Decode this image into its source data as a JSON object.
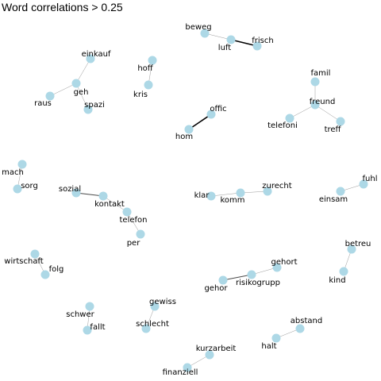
{
  "title": "Word correlations > 0.25",
  "colors": {
    "node": "#add8e6",
    "edge": "#000000",
    "background": "#ffffff"
  },
  "graph": {
    "nodes": [
      {
        "id": "beweg",
        "label": "beweg"
      },
      {
        "id": "luft",
        "label": "luft"
      },
      {
        "id": "frisch",
        "label": "frisch"
      },
      {
        "id": "einkauf",
        "label": "einkauf"
      },
      {
        "id": "geh",
        "label": "geh"
      },
      {
        "id": "raus",
        "label": "raus"
      },
      {
        "id": "spazi",
        "label": "spazi"
      },
      {
        "id": "hoff",
        "label": "hoff"
      },
      {
        "id": "kris",
        "label": "kris"
      },
      {
        "id": "famil",
        "label": "famil"
      },
      {
        "id": "freund",
        "label": "freund"
      },
      {
        "id": "telefoni",
        "label": "telefoni"
      },
      {
        "id": "treff",
        "label": "treff"
      },
      {
        "id": "offic",
        "label": "offic"
      },
      {
        "id": "hom",
        "label": "hom"
      },
      {
        "id": "mach",
        "label": "mach"
      },
      {
        "id": "sorg",
        "label": "sorg"
      },
      {
        "id": "sozial",
        "label": "sozial"
      },
      {
        "id": "kontakt",
        "label": "kontakt"
      },
      {
        "id": "telefon",
        "label": "telefon"
      },
      {
        "id": "per",
        "label": "per"
      },
      {
        "id": "klar",
        "label": "klar"
      },
      {
        "id": "komm",
        "label": "komm"
      },
      {
        "id": "zurecht",
        "label": "zurecht"
      },
      {
        "id": "fuhl",
        "label": "fuhl"
      },
      {
        "id": "einsam",
        "label": "einsam"
      },
      {
        "id": "wirtschaft",
        "label": "wirtschaft"
      },
      {
        "id": "folg",
        "label": "folg"
      },
      {
        "id": "betreu",
        "label": "betreu"
      },
      {
        "id": "kind",
        "label": "kind"
      },
      {
        "id": "gehort",
        "label": "gehort"
      },
      {
        "id": "risikogrupp",
        "label": "risikogrupp"
      },
      {
        "id": "gehor",
        "label": "gehor"
      },
      {
        "id": "schwer",
        "label": "schwer"
      },
      {
        "id": "fallt",
        "label": "fallt"
      },
      {
        "id": "gewiss",
        "label": "gewiss"
      },
      {
        "id": "schlecht",
        "label": "schlecht"
      },
      {
        "id": "kurzarbeit",
        "label": "kurzarbeit"
      },
      {
        "id": "finanziell",
        "label": "finanziell"
      },
      {
        "id": "abstand",
        "label": "abstand"
      },
      {
        "id": "halt",
        "label": "halt"
      }
    ],
    "edges": [
      {
        "source": "beweg",
        "target": "luft",
        "strength": "weak"
      },
      {
        "source": "luft",
        "target": "frisch",
        "strength": "strong"
      },
      {
        "source": "einkauf",
        "target": "geh",
        "strength": "weak"
      },
      {
        "source": "geh",
        "target": "raus",
        "strength": "weak"
      },
      {
        "source": "geh",
        "target": "spazi",
        "strength": "weak"
      },
      {
        "source": "hoff",
        "target": "kris",
        "strength": "weak"
      },
      {
        "source": "famil",
        "target": "freund",
        "strength": "weak"
      },
      {
        "source": "freund",
        "target": "telefoni",
        "strength": "weak"
      },
      {
        "source": "freund",
        "target": "treff",
        "strength": "weak"
      },
      {
        "source": "offic",
        "target": "hom",
        "strength": "strong"
      },
      {
        "source": "mach",
        "target": "sorg",
        "strength": "weak"
      },
      {
        "source": "sozial",
        "target": "kontakt",
        "strength": "medium"
      },
      {
        "source": "kontakt",
        "target": "telefon",
        "strength": "weak"
      },
      {
        "source": "telefon",
        "target": "per",
        "strength": "weak"
      },
      {
        "source": "klar",
        "target": "komm",
        "strength": "weak"
      },
      {
        "source": "komm",
        "target": "zurecht",
        "strength": "weak"
      },
      {
        "source": "fuhl",
        "target": "einsam",
        "strength": "weak"
      },
      {
        "source": "wirtschaft",
        "target": "folg",
        "strength": "weak"
      },
      {
        "source": "betreu",
        "target": "kind",
        "strength": "weak"
      },
      {
        "source": "gehort",
        "target": "risikogrupp",
        "strength": "weak"
      },
      {
        "source": "risikogrupp",
        "target": "gehor",
        "strength": "medium"
      },
      {
        "source": "schwer",
        "target": "fallt",
        "strength": "weak"
      },
      {
        "source": "gewiss",
        "target": "schlecht",
        "strength": "weak"
      },
      {
        "source": "kurzarbeit",
        "target": "finanziell",
        "strength": "weak"
      },
      {
        "source": "abstand",
        "target": "halt",
        "strength": "weak"
      }
    ]
  }
}
